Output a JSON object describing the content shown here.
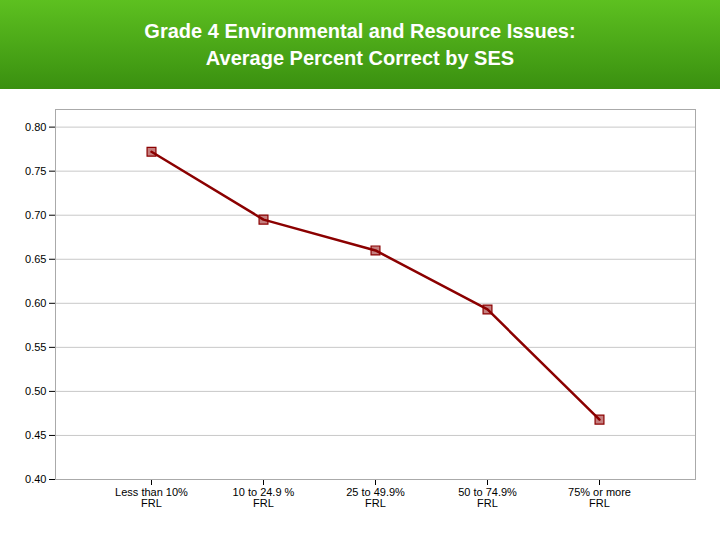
{
  "chart_data": {
    "type": "line",
    "title": "Grade 4 Environmental and Resource Issues:\nAverage Percent Correct by SES",
    "categories": [
      "Less than 10%\nFRL",
      "10 to 24.9 %\nFRL",
      "25 to 49.9%\nFRL",
      "50 to 74.9%\nFRL",
      "75% or more\nFRL"
    ],
    "values": [
      0.772,
      0.695,
      0.66,
      0.593,
      0.468
    ],
    "color": "#8b0000",
    "marker": "square",
    "ylim": [
      0.4,
      0.82
    ],
    "yticks": [
      {
        "value": 0.4,
        "label": "0.40"
      },
      0.45,
      {
        "value": 0.5,
        "label": "0.50"
      },
      0.55,
      {
        "value": 0.6,
        "label": "0.60"
      },
      0.65,
      {
        "value": 0.7,
        "label": "0.70"
      },
      0.75,
      {
        "value": 0.8,
        "label": "0.80"
      }
    ],
    "grid": true
  }
}
